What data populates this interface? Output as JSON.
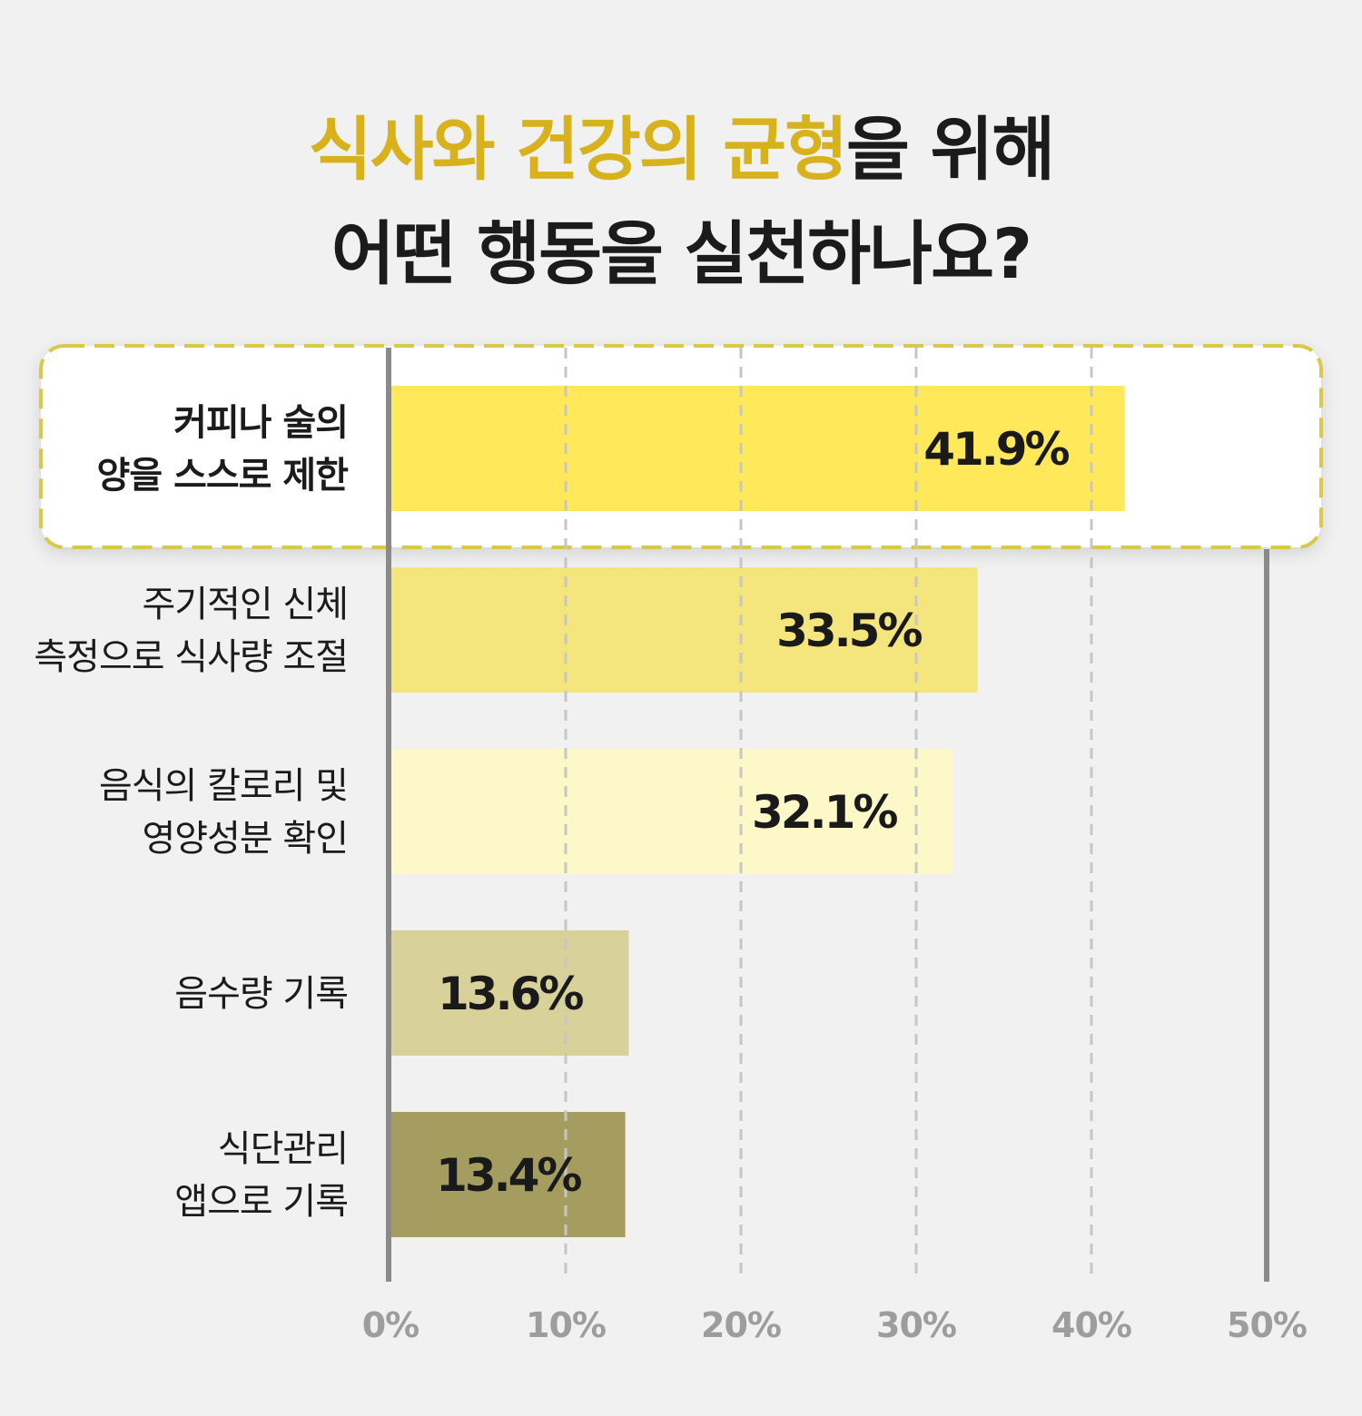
{
  "title": {
    "line1_highlight": "식사와 건강의 균형",
    "line1_rest": "을 위해",
    "line2": "어떤 행동을 실천하나요?"
  },
  "colors": {
    "background": "#f1f1f1",
    "highlight_text": "#d8b21c",
    "highlight_box_border": "#d9c84a",
    "axis": "#8a8a8a",
    "bars": [
      "#ffe95a",
      "#f4e67c",
      "#fdf8c8",
      "#d8d29a",
      "#a59d60"
    ]
  },
  "chart_data": {
    "type": "bar",
    "orientation": "horizontal",
    "categories": [
      [
        "커피나 술의",
        "양을 스스로 제한"
      ],
      [
        "주기적인 신체",
        "측정으로 식사량 조절"
      ],
      [
        "음식의 칼로리 및",
        "영양성분 확인"
      ],
      [
        "음수량 기록"
      ],
      [
        "식단관리",
        "앱으로 기록"
      ]
    ],
    "values": [
      41.9,
      33.5,
      32.1,
      13.6,
      13.4
    ],
    "value_labels": [
      "41.9%",
      "33.5%",
      "32.1%",
      "13.6%",
      "13.4%"
    ],
    "highlighted_index": 0,
    "xlim": [
      0,
      50
    ],
    "xticks": [
      0,
      10,
      20,
      30,
      40,
      50
    ],
    "xtick_labels": [
      "0%",
      "10%",
      "20%",
      "30%",
      "40%",
      "50%"
    ],
    "grid": "dashed vertical"
  }
}
